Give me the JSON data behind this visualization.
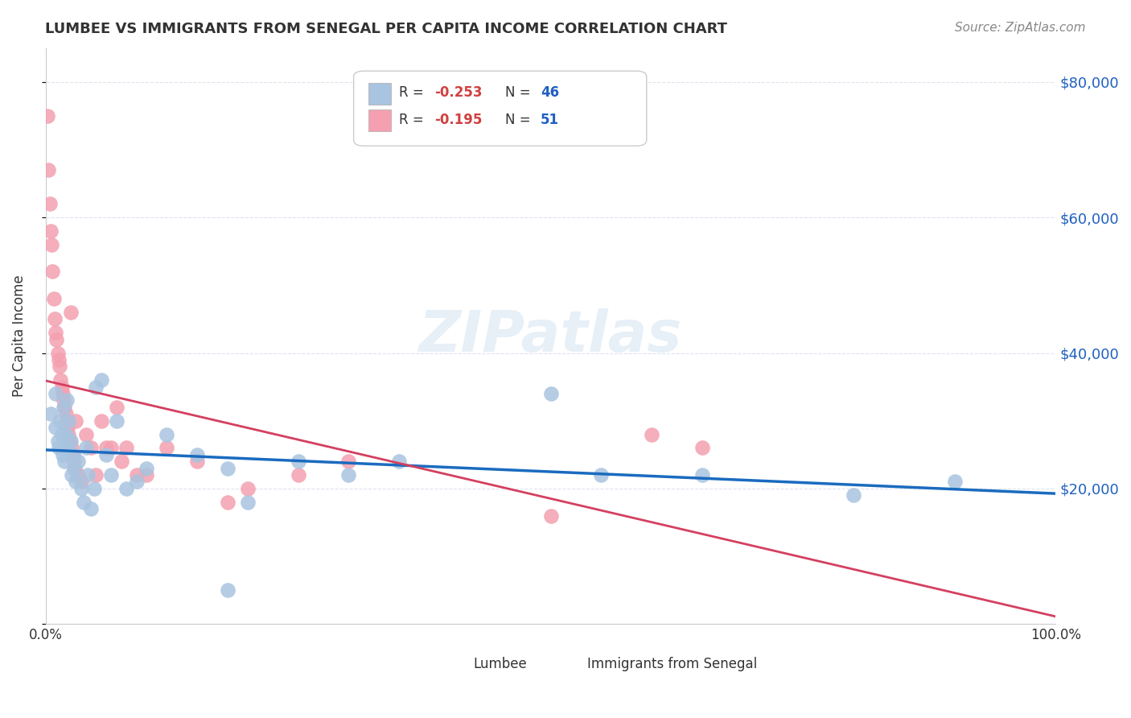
{
  "title": "LUMBEE VS IMMIGRANTS FROM SENEGAL PER CAPITA INCOME CORRELATION CHART",
  "source": "Source: ZipAtlas.com",
  "xlabel": "",
  "ylabel": "Per Capita Income",
  "xlim": [
    0,
    1.0
  ],
  "ylim": [
    0,
    85000
  ],
  "yticks": [
    0,
    20000,
    40000,
    60000,
    80000
  ],
  "ytick_labels": [
    "",
    "$20,000",
    "$40,000",
    "$60,000",
    "$80,000"
  ],
  "xtick_labels": [
    "0.0%",
    "100.0%"
  ],
  "legend_r1": "R = -0.253",
  "legend_n1": "N = 46",
  "legend_r2": "R = -0.195",
  "legend_n2": "N = 51",
  "lumbee_color": "#a8c4e0",
  "senegal_color": "#f4a0b0",
  "trend_lumbee_color": "#1a6bbf",
  "trend_senegal_color": "#d44060",
  "trend_gray_color": "#b0b0b0",
  "watermark": "ZIPatlas",
  "lumbee_x": [
    0.005,
    0.01,
    0.01,
    0.012,
    0.013,
    0.015,
    0.016,
    0.017,
    0.018,
    0.019,
    0.02,
    0.021,
    0.022,
    0.023,
    0.025,
    0.026,
    0.027,
    0.028,
    0.03,
    0.032,
    0.035,
    0.038,
    0.04,
    0.042,
    0.045,
    0.048,
    0.05,
    0.055,
    0.06,
    0.065,
    0.07,
    0.08,
    0.09,
    0.1,
    0.12,
    0.15,
    0.18,
    0.2,
    0.25,
    0.3,
    0.35,
    0.5,
    0.55,
    0.65,
    0.8,
    0.9
  ],
  "lumbee_y": [
    31000,
    34000,
    29000,
    27000,
    26000,
    30000,
    28000,
    25000,
    32000,
    24000,
    28000,
    33000,
    26000,
    30000,
    27000,
    22000,
    25000,
    23000,
    21000,
    24000,
    20000,
    18000,
    26000,
    22000,
    17000,
    20000,
    35000,
    36000,
    25000,
    22000,
    30000,
    20000,
    21000,
    23000,
    28000,
    25000,
    23000,
    18000,
    24000,
    22000,
    24000,
    34000,
    22000,
    22000,
    19000,
    21000
  ],
  "lumbee_outlier_x": [
    0.18
  ],
  "lumbee_outlier_y": [
    5000
  ],
  "senegal_x": [
    0.002,
    0.003,
    0.004,
    0.005,
    0.006,
    0.007,
    0.008,
    0.009,
    0.01,
    0.011,
    0.012,
    0.013,
    0.014,
    0.015,
    0.016,
    0.017,
    0.018,
    0.019,
    0.02,
    0.021,
    0.022,
    0.023,
    0.024,
    0.025,
    0.026,
    0.027,
    0.028,
    0.029,
    0.03,
    0.032,
    0.035,
    0.04,
    0.045,
    0.05,
    0.055,
    0.06,
    0.065,
    0.07,
    0.075,
    0.08,
    0.09,
    0.1,
    0.12,
    0.15,
    0.18,
    0.2,
    0.25,
    0.3,
    0.5,
    0.6,
    0.65
  ],
  "senegal_y": [
    75000,
    67000,
    62000,
    58000,
    56000,
    52000,
    48000,
    45000,
    43000,
    42000,
    40000,
    39000,
    38000,
    36000,
    35000,
    34000,
    33000,
    32000,
    31000,
    30000,
    29000,
    28000,
    27000,
    46000,
    26000,
    25000,
    24000,
    23000,
    30000,
    22000,
    21000,
    28000,
    26000,
    22000,
    30000,
    26000,
    26000,
    32000,
    24000,
    26000,
    22000,
    22000,
    26000,
    24000,
    18000,
    20000,
    22000,
    24000,
    16000,
    28000,
    26000
  ]
}
